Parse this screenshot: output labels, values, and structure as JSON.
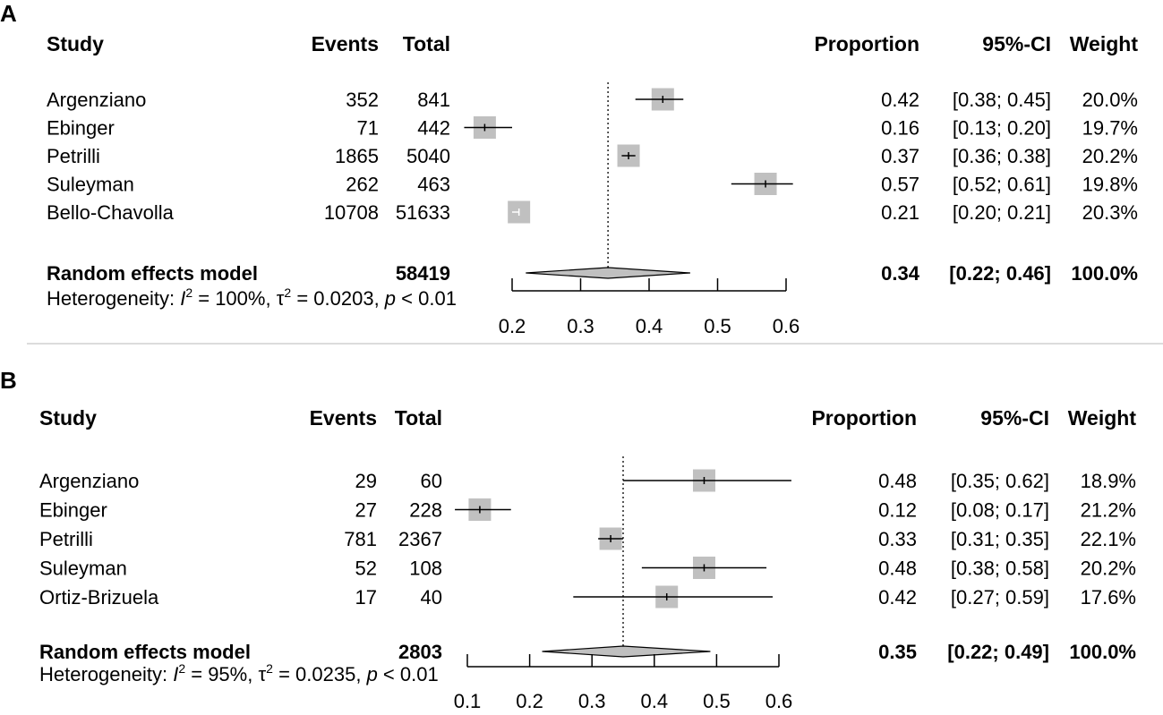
{
  "chart_data": [
    {
      "panel": "A",
      "type": "forest",
      "columns": {
        "study": "Study",
        "events": "Events",
        "total": "Total",
        "proportion": "Proportion",
        "ci": "95%-CI",
        "weight": "Weight"
      },
      "studies": [
        {
          "name": "Argenziano",
          "events": "352",
          "total": "841",
          "prop": 0.42,
          "lo": 0.38,
          "hi": 0.45,
          "prop_label": "0.42",
          "ci_label": "[0.38; 0.45]",
          "weight_label": "20.0%"
        },
        {
          "name": "Ebinger",
          "events": "71",
          "total": "442",
          "prop": 0.16,
          "lo": 0.13,
          "hi": 0.2,
          "prop_label": "0.16",
          "ci_label": "[0.13; 0.20]",
          "weight_label": "19.7%"
        },
        {
          "name": "Petrilli",
          "events": "1865",
          "total": "5040",
          "prop": 0.37,
          "lo": 0.36,
          "hi": 0.38,
          "prop_label": "0.37",
          "ci_label": "[0.36; 0.38]",
          "weight_label": "20.2%"
        },
        {
          "name": "Suleyman",
          "events": "262",
          "total": "463",
          "prop": 0.57,
          "lo": 0.52,
          "hi": 0.61,
          "prop_label": "0.57",
          "ci_label": "[0.52; 0.61]",
          "weight_label": "19.8%"
        },
        {
          "name": "Bello-Chavolla",
          "events": "10708",
          "total": "51633",
          "prop": 0.21,
          "lo": 0.2,
          "hi": 0.21,
          "prop_label": "0.21",
          "ci_label": "[0.20; 0.21]",
          "weight_label": "20.3%"
        }
      ],
      "model": {
        "name": "Random effects model",
        "total": "58419",
        "est": 0.34,
        "lo": 0.22,
        "hi": 0.46,
        "prop_label": "0.34",
        "ci_label": "[0.22; 0.46]",
        "weight_label": "100.0%"
      },
      "heterogeneity": {
        "prefix": "Heterogeneity: ",
        "I2": "= 100%, ",
        "tau2": "= 0.0203, ",
        "p": "< 0.01"
      },
      "xlim": [
        0.2,
        0.6
      ],
      "ticks": [
        "0.2",
        "0.3",
        "0.4",
        "0.5",
        "0.6"
      ]
    },
    {
      "panel": "B",
      "type": "forest",
      "columns": {
        "study": "Study",
        "events": "Events",
        "total": "Total",
        "proportion": "Proportion",
        "ci": "95%-CI",
        "weight": "Weight"
      },
      "studies": [
        {
          "name": "Argenziano",
          "events": "29",
          "total": "60",
          "prop": 0.48,
          "lo": 0.35,
          "hi": 0.62,
          "prop_label": "0.48",
          "ci_label": "[0.35; 0.62]",
          "weight_label": "18.9%"
        },
        {
          "name": "Ebinger",
          "events": "27",
          "total": "228",
          "prop": 0.12,
          "lo": 0.08,
          "hi": 0.17,
          "prop_label": "0.12",
          "ci_label": "[0.08; 0.17]",
          "weight_label": "21.2%"
        },
        {
          "name": "Petrilli",
          "events": "781",
          "total": "2367",
          "prop": 0.33,
          "lo": 0.31,
          "hi": 0.35,
          "prop_label": "0.33",
          "ci_label": "[0.31; 0.35]",
          "weight_label": "22.1%"
        },
        {
          "name": "Suleyman",
          "events": "52",
          "total": "108",
          "prop": 0.48,
          "lo": 0.38,
          "hi": 0.58,
          "prop_label": "0.48",
          "ci_label": "[0.38; 0.58]",
          "weight_label": "20.2%"
        },
        {
          "name": "Ortiz-Brizuela",
          "events": "17",
          "total": "40",
          "prop": 0.42,
          "lo": 0.27,
          "hi": 0.59,
          "prop_label": "0.42",
          "ci_label": "[0.27; 0.59]",
          "weight_label": "17.6%"
        }
      ],
      "model": {
        "name": "Random effects model",
        "total": "2803",
        "est": 0.35,
        "lo": 0.22,
        "hi": 0.49,
        "prop_label": "0.35",
        "ci_label": "[0.22; 0.49]",
        "weight_label": "100.0%"
      },
      "heterogeneity": {
        "prefix": "Heterogeneity: ",
        "I2": "= 95%, ",
        "tau2": "= 0.0235, ",
        "p": "< 0.01"
      },
      "xlim": [
        0.1,
        0.6
      ],
      "ticks": [
        "0.1",
        "0.2",
        "0.3",
        "0.4",
        "0.5",
        "0.6"
      ]
    }
  ]
}
